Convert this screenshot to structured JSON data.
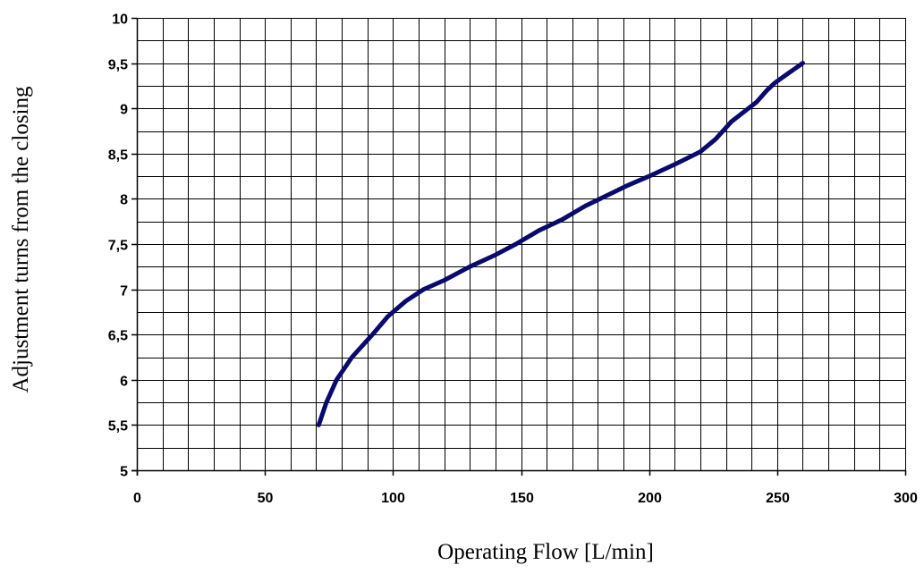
{
  "chart_data": {
    "type": "line",
    "title": "",
    "xlabel": "Operating Flow [L/min]",
    "ylabel": "Adjustment turns from the closing",
    "xlim": [
      0,
      300
    ],
    "ylim": [
      5,
      10
    ],
    "x_major_step": 50,
    "x_minor_step": 10,
    "y_major_step": 0.5,
    "y_minor_step": 0.25,
    "x_tick_labels": [
      "0",
      "50",
      "100",
      "150",
      "200",
      "250",
      "300"
    ],
    "y_tick_labels": [
      "5",
      "5,5",
      "6",
      "6,5",
      "7",
      "7,5",
      "8",
      "8,5",
      "9",
      "9,5",
      "10"
    ],
    "grid": true,
    "legend": "none",
    "line_color": "#0a0a6e",
    "series": [
      {
        "x": [
          71,
          74,
          78,
          84,
          92,
          98,
          105,
          112,
          120,
          130,
          140,
          148,
          157,
          166,
          175,
          183,
          191,
          200,
          210,
          220,
          226,
          232,
          237,
          242,
          246,
          249,
          254,
          260
        ],
        "y": [
          5.5,
          5.75,
          6.0,
          6.25,
          6.5,
          6.7,
          6.87,
          7.0,
          7.1,
          7.25,
          7.38,
          7.5,
          7.65,
          7.77,
          7.92,
          8.03,
          8.14,
          8.25,
          8.38,
          8.52,
          8.66,
          8.85,
          8.96,
          9.07,
          9.2,
          9.28,
          9.38,
          9.5
        ]
      }
    ]
  }
}
